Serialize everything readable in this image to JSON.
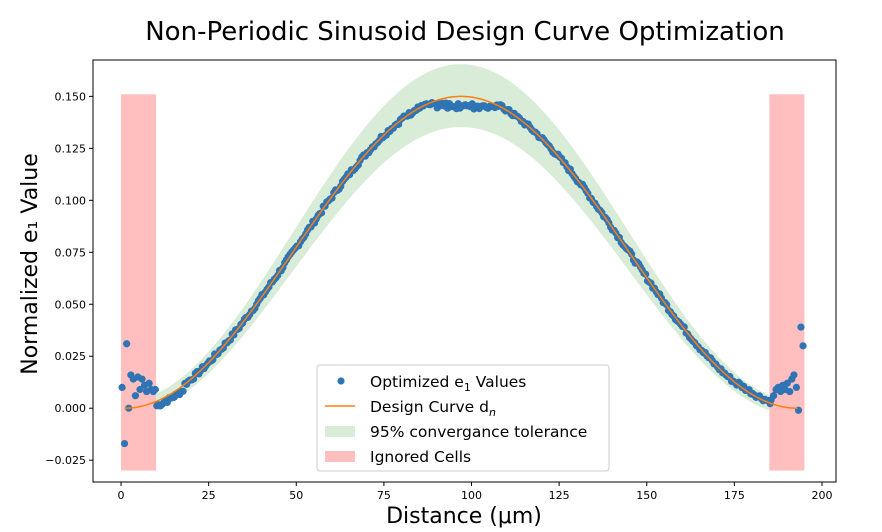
{
  "chart_data": {
    "type": "scatter",
    "title": "Non-Periodic Sinusoid Design Curve Optimization",
    "xlabel": "Distance (μm)",
    "ylabel": "Normalized e₁ Value",
    "xlim": [
      -8,
      204
    ],
    "ylim": [
      -0.0355,
      0.1675
    ],
    "x_ticks": [
      "0",
      "25",
      "50",
      "75",
      "100",
      "125",
      "150",
      "175",
      "200"
    ],
    "y_ticks": [
      "−0.025",
      "0.000",
      "0.025",
      "0.050",
      "0.075",
      "0.100",
      "0.125",
      "0.150"
    ],
    "grid": false,
    "legend_position": "bottom-center",
    "colors": {
      "points": "#2f74b5",
      "design_curve": "#ff7f0e",
      "tolerance_band": "#d8ecd8",
      "ignored_cells": "#ffbfbf"
    },
    "design_curve": {
      "name": "Design Curve d",
      "name_subscript": "n",
      "formula": "0.15/2 * (1 - cos(2π (x - 1) / 192))",
      "x_range": [
        1,
        193
      ],
      "amplitude": 0.15
    },
    "tolerance_band": {
      "name": "95% convergance tolerance",
      "x_range": [
        10,
        185
      ]
    },
    "ignored_cells": {
      "name": "Ignored Cells",
      "regions": [
        {
          "x0": 0,
          "x1": 10,
          "y0": -0.03,
          "y1": 0.151
        },
        {
          "x0": 185,
          "x1": 195,
          "y0": -0.03,
          "y1": 0.151
        }
      ]
    },
    "optimized_points": {
      "name": "Optimized e",
      "name_subscript": "1",
      "name_suffix": " Values",
      "x": [
        0.3,
        1.0,
        1.6,
        2.2,
        2.8,
        3.5,
        4.1,
        4.8,
        5.4,
        6.0,
        6.7,
        7.3,
        8.0,
        8.6,
        9.2,
        9.8,
        185.5,
        186.2,
        186.9,
        187.5,
        188.2,
        188.8,
        189.5,
        190.1,
        190.8,
        191.4,
        192.0,
        192.7,
        193.3,
        194.0,
        194.6
      ],
      "y": [
        0.01,
        -0.017,
        0.031,
        0.0,
        0.016,
        0.014,
        0.006,
        0.015,
        0.009,
        0.014,
        0.011,
        0.008,
        0.012,
        0.009,
        0.008,
        0.009,
        0.004,
        0.006,
        0.009,
        0.01,
        0.008,
        0.011,
        0.009,
        0.012,
        0.008,
        0.014,
        0.016,
        0.01,
        -0.001,
        0.039,
        0.03
      ],
      "interior_trend": "follows design curve, slightly below peak (~0.146) near x=85–110"
    }
  }
}
